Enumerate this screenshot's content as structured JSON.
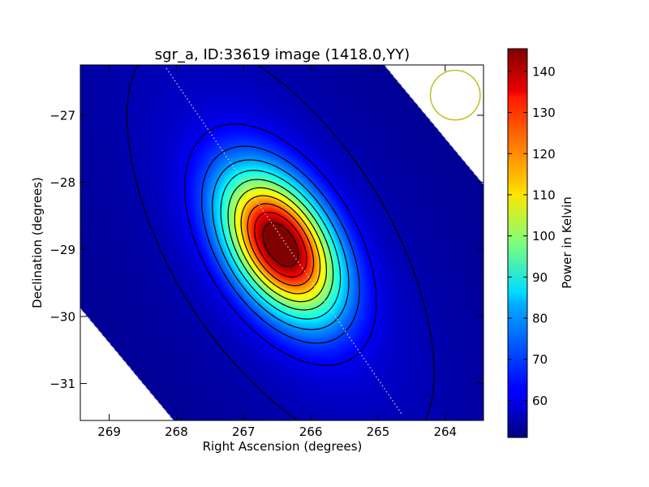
{
  "chart_data": {
    "type": "heatmap",
    "title": "sgr_a, ID:33619 image (1418.0,YY)",
    "xlabel": "Right Ascension (degrees)",
    "ylabel": "Declination (degrees)",
    "xlim": [
      269.43,
      263.43
    ],
    "ylim": [
      -31.55,
      -26.25
    ],
    "x_inverted": true,
    "x_ticks": [
      269,
      268,
      267,
      266,
      265,
      264
    ],
    "y_ticks": [
      -27,
      -28,
      -29,
      -30,
      -31
    ],
    "x_tick_labels": [
      "269",
      "268",
      "267",
      "266",
      "265",
      "264"
    ],
    "y_tick_labels": [
      "−27",
      "−28",
      "−29",
      "−30",
      "−31"
    ],
    "colormap": "jet",
    "colorbar": {
      "label": "Power in Kelvin",
      "min": 51,
      "max": 145.5,
      "ticks": [
        60,
        70,
        80,
        90,
        100,
        110,
        120,
        130,
        140
      ],
      "tick_labels": [
        "60",
        "70",
        "80",
        "90",
        "100",
        "110",
        "120",
        "130",
        "140"
      ]
    },
    "peak": {
      "ra": 266.45,
      "dec": -28.93,
      "value": 145
    },
    "background_level": 53,
    "contours": {
      "count": 11,
      "color": "#000000"
    },
    "beam": {
      "ra": 263.85,
      "dec": -26.7,
      "radius_deg": 0.37,
      "color": "#bfbf26"
    },
    "scan_line": {
      "from": {
        "ra": 268.15,
        "dec": -26.3
      },
      "to": {
        "ra": 264.65,
        "dec": -31.45
      }
    }
  }
}
